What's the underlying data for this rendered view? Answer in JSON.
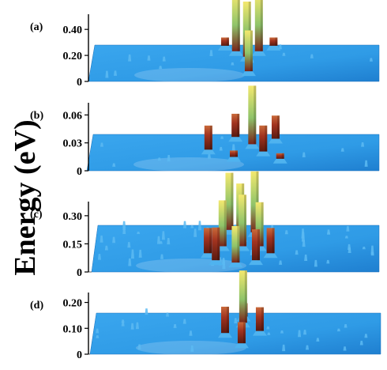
{
  "chart_data": {
    "type": "3d-surface",
    "ylabel": "Energy (eV)",
    "surface_color": "#2f9be6",
    "peak_colors": {
      "low": "#8a2a1f",
      "mid": "#8fc46a",
      "high": "#f2e46a"
    },
    "panels": [
      {
        "label": "(a)",
        "ticks": [
          "0",
          "0.20",
          "0.40"
        ],
        "ylim": [
          0,
          0.48
        ],
        "peaks": [
          {
            "x": 0.5,
            "d": 0.3,
            "value": 0.48
          },
          {
            "x": 0.54,
            "d": 0.45,
            "value": 0.46
          },
          {
            "x": 0.58,
            "d": 0.3,
            "value": 0.48
          },
          {
            "x": 0.46,
            "d": 0.15,
            "value": 0.1
          },
          {
            "x": 0.63,
            "d": 0.15,
            "value": 0.1
          },
          {
            "x": 0.55,
            "d": 0.85,
            "value": 0.35
          }
        ]
      },
      {
        "label": "(b)",
        "ticks": [
          "0",
          "0.03",
          "0.06"
        ],
        "ylim": [
          0,
          0.068
        ],
        "peaks": [
          {
            "x": 0.5,
            "d": 0.2,
            "value": 0.03
          },
          {
            "x": 0.56,
            "d": 0.4,
            "value": 0.068
          },
          {
            "x": 0.64,
            "d": 0.25,
            "value": 0.03
          },
          {
            "x": 0.41,
            "d": 0.55,
            "value": 0.031
          },
          {
            "x": 0.6,
            "d": 0.6,
            "value": 0.033
          },
          {
            "x": 0.5,
            "d": 0.75,
            "value": 0.012
          },
          {
            "x": 0.66,
            "d": 0.8,
            "value": 0.011
          }
        ]
      },
      {
        "label": "(c)",
        "ticks": [
          "0",
          "0.15",
          "0.30"
        ],
        "ylim": [
          0,
          0.35
        ],
        "peaks": [
          {
            "x": 0.47,
            "d": 0.2,
            "value": 0.33
          },
          {
            "x": 0.51,
            "d": 0.35,
            "value": 0.31
          },
          {
            "x": 0.56,
            "d": 0.25,
            "value": 0.35
          },
          {
            "x": 0.45,
            "d": 0.55,
            "value": 0.27
          },
          {
            "x": 0.52,
            "d": 0.55,
            "value": 0.3
          },
          {
            "x": 0.58,
            "d": 0.55,
            "value": 0.26
          },
          {
            "x": 0.43,
            "d": 0.85,
            "value": 0.2
          },
          {
            "x": 0.5,
            "d": 0.9,
            "value": 0.22
          },
          {
            "x": 0.57,
            "d": 0.85,
            "value": 0.19
          },
          {
            "x": 0.4,
            "d": 0.7,
            "value": 0.16
          },
          {
            "x": 0.62,
            "d": 0.7,
            "value": 0.16
          }
        ]
      },
      {
        "label": "(d)",
        "ticks": [
          "0",
          "0.10",
          "0.20"
        ],
        "ylim": [
          0,
          0.22
        ],
        "peaks": [
          {
            "x": 0.52,
            "d": 0.35,
            "value": 0.22
          },
          {
            "x": 0.46,
            "d": 0.6,
            "value": 0.12
          },
          {
            "x": 0.58,
            "d": 0.55,
            "value": 0.11
          },
          {
            "x": 0.52,
            "d": 0.2,
            "value": 0.07
          },
          {
            "x": 0.52,
            "d": 0.85,
            "value": 0.1
          }
        ]
      }
    ]
  }
}
